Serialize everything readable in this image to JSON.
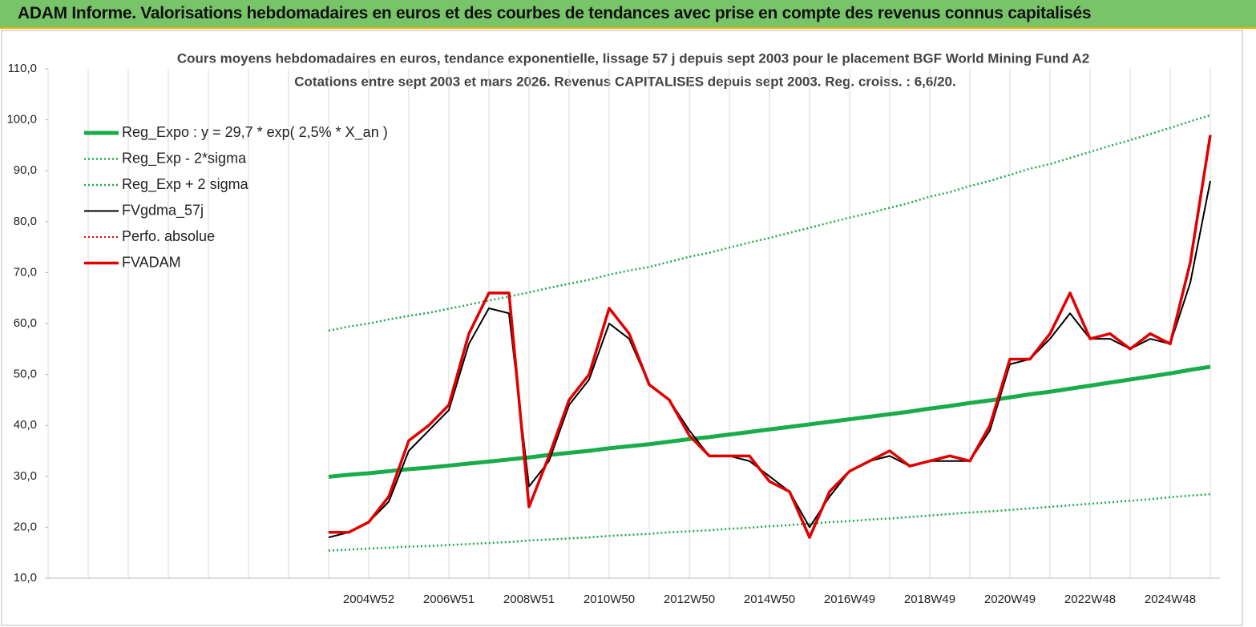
{
  "header": {
    "title": "ADAM Informe. Valorisations hebdomadaires en euros et des courbes de tendances avec prise en compte des revenus connus capitalisés"
  },
  "chart_data": {
    "type": "line",
    "title": "Cours moyens hebdomadaires en euros, tendance exponentielle, lissage 57 j depuis sept 2003 pour le placement BGF World Mining Fund A2",
    "subtitle": "Cotations entre sept 2003 et mars 2026. Revenus CAPITALISES depuis sept 2003. Reg. croiss. : 6,6/20.",
    "categories": [
      null,
      null,
      null,
      null,
      null,
      null,
      null,
      null,
      null,
      null,
      null,
      null,
      null,
      null,
      null,
      null,
      "2004W52",
      null,
      null,
      null,
      "2006W51",
      null,
      null,
      null,
      "2008W51",
      null,
      null,
      null,
      "2010W50",
      null,
      null,
      null,
      "2012W50",
      null,
      null,
      null,
      "2014W50",
      null,
      null,
      null,
      "2016W49",
      null,
      null,
      null,
      "2018W49",
      null,
      null,
      null,
      "2020W49",
      null,
      null,
      null,
      "2022W48",
      null,
      null,
      null,
      "2024W48",
      null,
      null
    ],
    "ylim": [
      10,
      110
    ],
    "yticks": [
      {
        "value": 10,
        "label": "10,0"
      },
      {
        "value": 20,
        "label": "20,0"
      },
      {
        "value": 30,
        "label": "30,0"
      },
      {
        "value": 40,
        "label": "40,0"
      },
      {
        "value": 50,
        "label": "50,0"
      },
      {
        "value": 60,
        "label": "60,0"
      },
      {
        "value": 70,
        "label": "70,0"
      },
      {
        "value": 80,
        "label": "80,0"
      },
      {
        "value": 90,
        "label": "90,0"
      },
      {
        "value": 100,
        "label": "100,0"
      },
      {
        "value": 110,
        "label": "110,0"
      }
    ],
    "xgrid": true,
    "legend": "upper left",
    "series": [
      {
        "name": "Reg_Expo : y = 29,7 * exp( 2,5% *  X_an )",
        "color": "#1aab4a",
        "width": 5,
        "dash": "solid",
        "values": [
          null,
          null,
          null,
          null,
          null,
          null,
          null,
          null,
          null,
          null,
          null,
          null,
          null,
          null,
          29.9,
          30.3,
          30.6,
          31.0,
          31.4,
          31.7,
          32.1,
          32.5,
          32.9,
          33.3,
          33.7,
          34.2,
          34.6,
          35.0,
          35.5,
          35.9,
          36.3,
          36.8,
          37.3,
          37.7,
          38.2,
          38.7,
          39.2,
          39.7,
          40.2,
          40.7,
          41.2,
          41.7,
          42.2,
          42.7,
          43.3,
          43.8,
          44.4,
          44.9,
          45.5,
          46.1,
          46.6,
          47.2,
          47.8,
          48.4,
          49.0,
          49.6,
          50.2,
          50.9,
          51.5
        ]
      },
      {
        "name": "Reg_Exp - 2*sigma",
        "color": "#1aab4a",
        "width": 2.5,
        "dash": "dotted",
        "values": [
          null,
          null,
          null,
          null,
          null,
          null,
          null,
          null,
          null,
          null,
          null,
          null,
          null,
          null,
          15.4,
          15.6,
          15.8,
          16.0,
          16.2,
          16.3,
          16.5,
          16.7,
          16.9,
          17.1,
          17.4,
          17.6,
          17.8,
          18.0,
          18.3,
          18.5,
          18.7,
          19.0,
          19.2,
          19.4,
          19.7,
          19.9,
          20.2,
          20.4,
          20.7,
          21.0,
          21.2,
          21.5,
          21.7,
          22.0,
          22.3,
          22.6,
          22.9,
          23.1,
          23.4,
          23.7,
          24.0,
          24.3,
          24.6,
          24.9,
          25.2,
          25.5,
          25.9,
          26.2,
          26.5
        ]
      },
      {
        "name": "Reg_Exp + 2 sigma",
        "color": "#1aab4a",
        "width": 2.5,
        "dash": "dotted",
        "values": [
          null,
          null,
          null,
          null,
          null,
          null,
          null,
          null,
          null,
          null,
          null,
          null,
          null,
          null,
          58.6,
          59.4,
          60.0,
          60.8,
          61.5,
          62.1,
          62.9,
          63.7,
          64.5,
          65.3,
          66.1,
          67.0,
          67.8,
          68.6,
          69.6,
          70.4,
          71.1,
          72.1,
          73.1,
          73.9,
          74.9,
          75.9,
          76.8,
          77.8,
          78.8,
          79.8,
          80.8,
          81.7,
          82.7,
          83.7,
          84.9,
          85.8,
          87.0,
          88.0,
          89.2,
          90.4,
          91.3,
          92.5,
          93.7,
          94.9,
          96.0,
          97.2,
          98.4,
          99.7,
          100.9
        ]
      },
      {
        "name": "FVgdma_57j",
        "color": "#000000",
        "width": 2,
        "dash": "solid",
        "values": [
          null,
          null,
          null,
          null,
          null,
          null,
          null,
          null,
          null,
          null,
          null,
          null,
          null,
          null,
          18,
          19,
          21,
          25,
          35,
          39,
          43,
          56,
          63,
          62,
          28,
          33,
          44,
          49,
          60,
          57,
          48,
          45,
          39,
          34,
          34,
          33,
          30,
          27,
          20,
          26,
          31,
          33,
          34,
          32,
          33,
          33,
          33,
          39,
          52,
          53,
          57,
          62,
          57,
          57,
          55,
          57,
          56,
          68,
          88
        ]
      },
      {
        "name": "Perfo. absolue",
        "color": "#e00000",
        "width": 2,
        "dash": "dotted",
        "values": [
          null,
          null,
          null,
          null,
          null,
          null,
          null,
          null,
          null,
          null,
          null,
          null,
          null,
          null,
          null,
          null,
          null,
          null,
          null,
          null,
          null,
          null,
          null,
          null,
          null,
          null,
          null,
          null,
          null,
          null,
          null,
          null,
          null,
          null,
          null,
          null,
          null,
          null,
          null,
          null,
          null,
          null,
          null,
          null,
          null,
          null,
          null,
          null,
          null,
          null,
          null,
          null,
          null,
          null,
          null,
          null,
          null,
          null,
          null
        ]
      },
      {
        "name": "FVADAM",
        "color": "#e00000",
        "width": 3.5,
        "dash": "solid",
        "values": [
          null,
          null,
          null,
          null,
          null,
          null,
          null,
          null,
          null,
          null,
          null,
          null,
          null,
          null,
          19,
          19,
          21,
          26,
          37,
          40,
          44,
          58,
          66,
          66,
          24,
          34,
          45,
          50,
          63,
          58,
          48,
          45,
          38,
          34,
          34,
          34,
          29,
          27,
          18,
          27,
          31,
          33,
          35,
          32,
          33,
          34,
          33,
          40,
          53,
          53,
          58,
          66,
          57,
          58,
          55,
          58,
          56,
          72,
          97
        ]
      }
    ]
  }
}
